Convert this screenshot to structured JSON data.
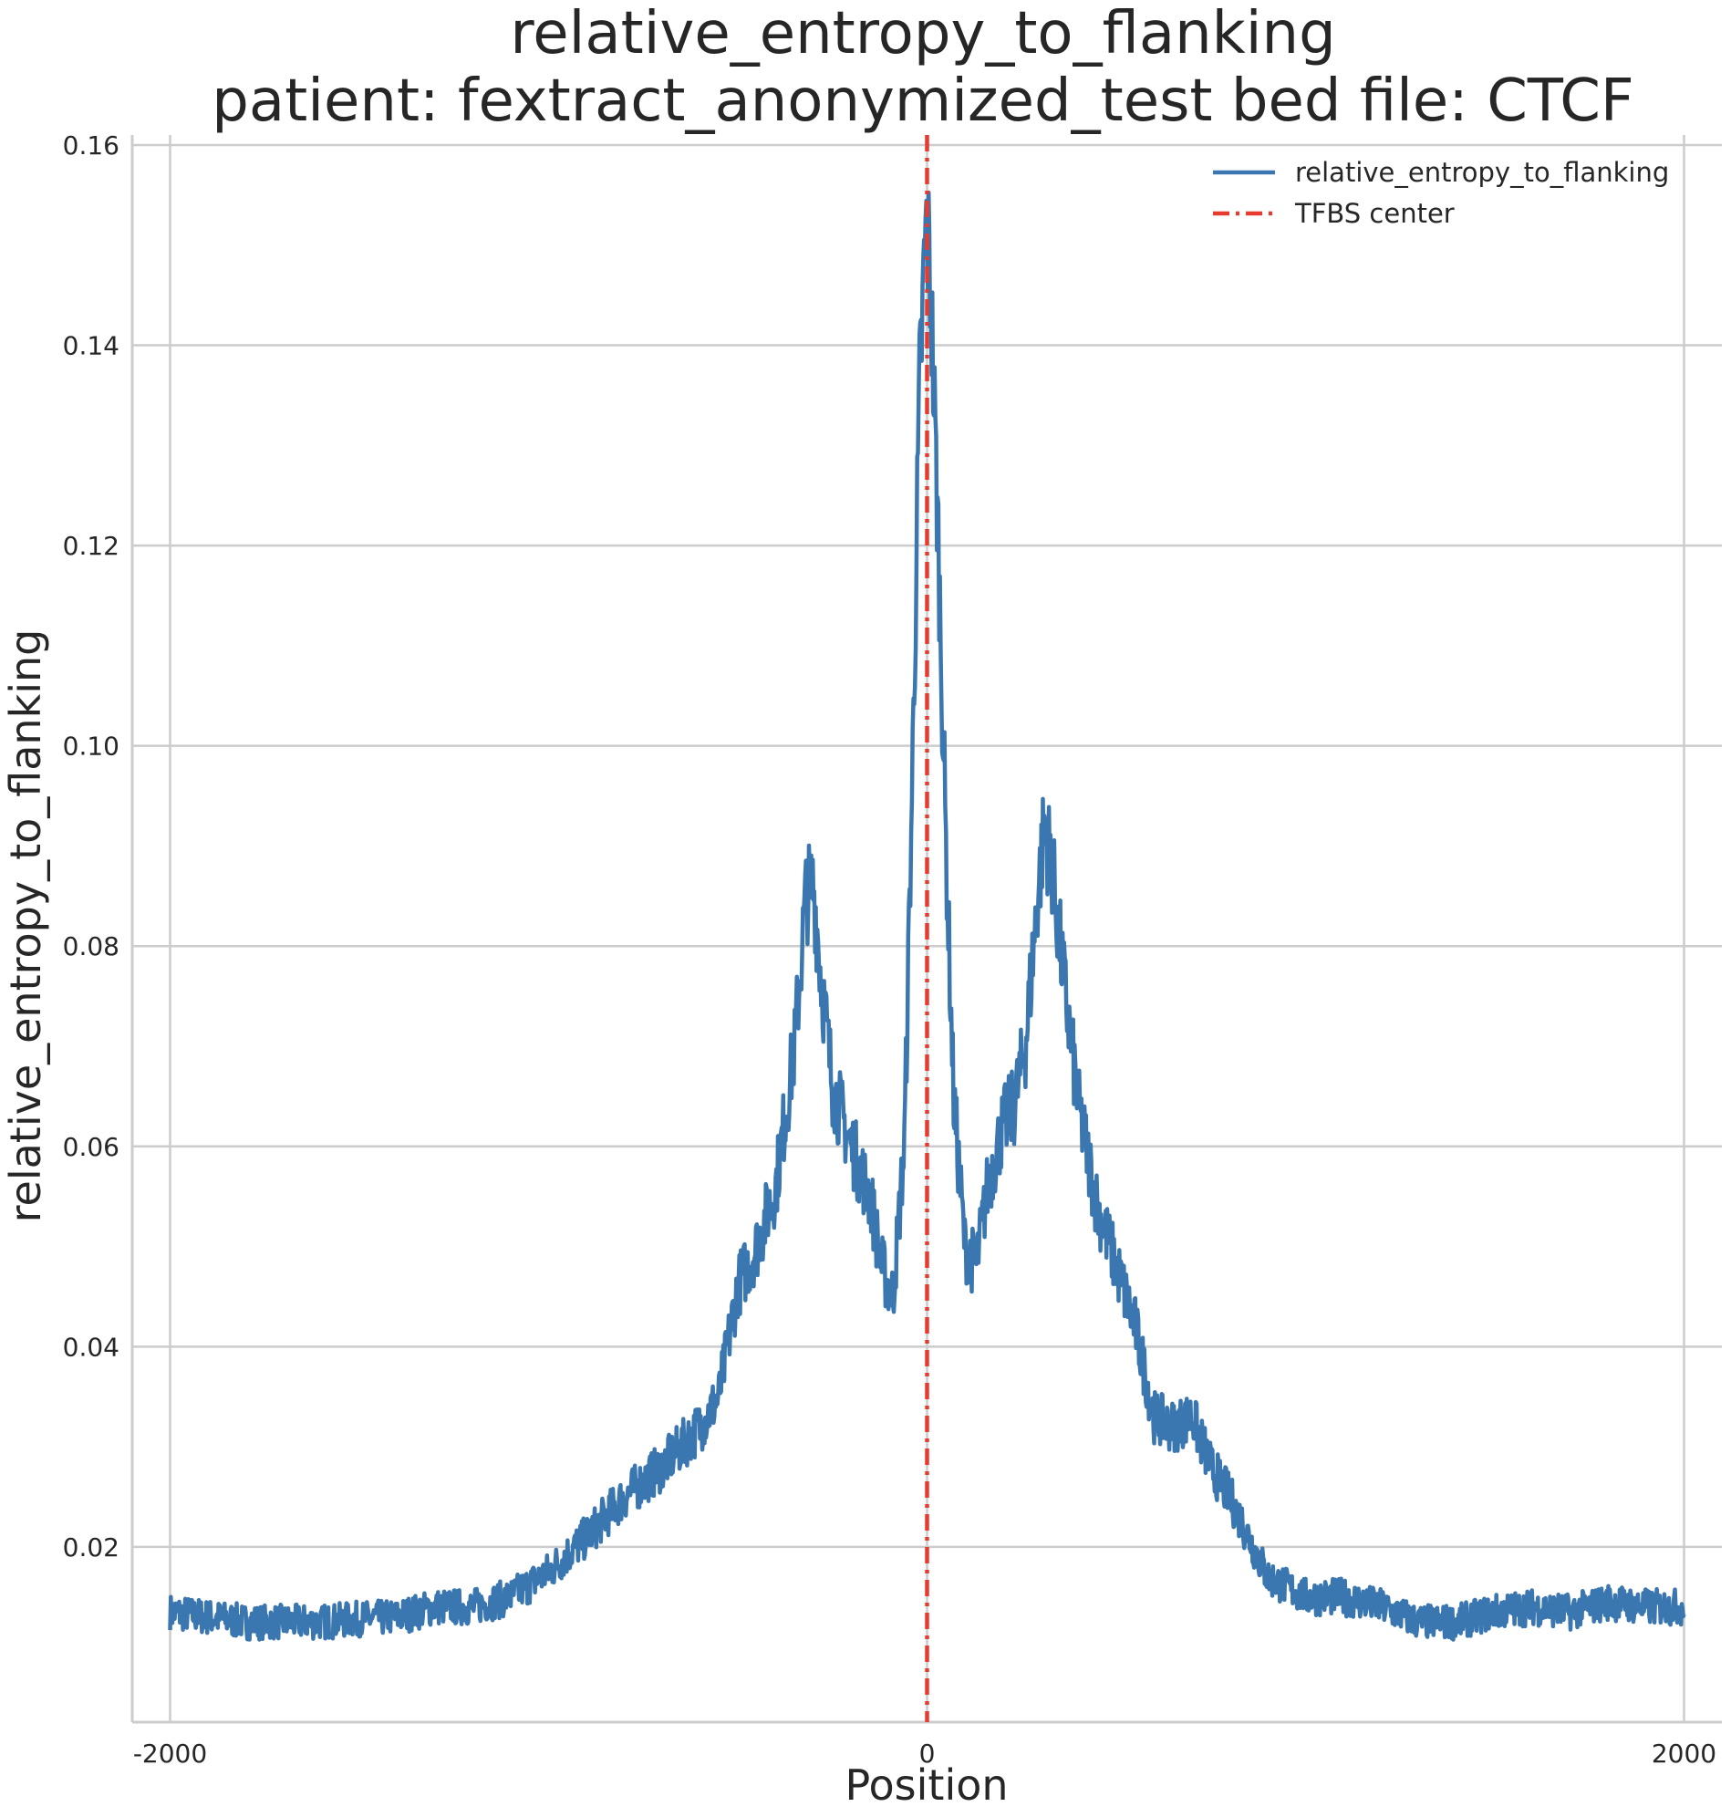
{
  "chart_data": {
    "type": "line",
    "title": "relative_entropy_to_flanking",
    "subtitle": "patient: fextract_anonymized_test bed file: CTCF",
    "xlabel": "Position",
    "ylabel": "relative_entropy_to_flanking",
    "xlim": [
      -2100,
      2100
    ],
    "ylim": [
      0.0025,
      0.161
    ],
    "xticks": [
      -2000,
      0,
      2000
    ],
    "xtick_labels": [
      "-2000",
      "0",
      "2000"
    ],
    "yticks": [
      0.02,
      0.04,
      0.06,
      0.08,
      0.1,
      0.12,
      0.14,
      0.16
    ],
    "ytick_labels": [
      "0.02",
      "0.04",
      "0.06",
      "0.08",
      "0.10",
      "0.12",
      "0.14",
      "0.16"
    ],
    "grid": true,
    "legend_position": "top-right",
    "series": [
      {
        "name": "relative_entropy_to_flanking",
        "color": "#3a76af",
        "style": "solid",
        "points": [
          [
            -2000,
            0.0135
          ],
          [
            -1900,
            0.013
          ],
          [
            -1800,
            0.0125
          ],
          [
            -1700,
            0.0125
          ],
          [
            -1600,
            0.0125
          ],
          [
            -1500,
            0.0128
          ],
          [
            -1400,
            0.013
          ],
          [
            -1300,
            0.014
          ],
          [
            -1200,
            0.014
          ],
          [
            -1100,
            0.015
          ],
          [
            -1000,
            0.0175
          ],
          [
            -900,
            0.021
          ],
          [
            -800,
            0.025
          ],
          [
            -700,
            0.028
          ],
          [
            -600,
            0.032
          ],
          [
            -550,
            0.035
          ],
          [
            -500,
            0.046
          ],
          [
            -450,
            0.05
          ],
          [
            -400,
            0.056
          ],
          [
            -350,
            0.07
          ],
          [
            -320,
            0.085
          ],
          [
            -300,
            0.086
          ],
          [
            -280,
            0.077
          ],
          [
            -250,
            0.066
          ],
          [
            -200,
            0.06
          ],
          [
            -150,
            0.055
          ],
          [
            -120,
            0.048
          ],
          [
            -90,
            0.045
          ],
          [
            -60,
            0.06
          ],
          [
            -40,
            0.095
          ],
          [
            -20,
            0.135
          ],
          [
            -5,
            0.15
          ],
          [
            0,
            0.152
          ],
          [
            10,
            0.145
          ],
          [
            30,
            0.12
          ],
          [
            50,
            0.09
          ],
          [
            70,
            0.065
          ],
          [
            100,
            0.05
          ],
          [
            130,
            0.048
          ],
          [
            160,
            0.056
          ],
          [
            200,
            0.062
          ],
          [
            230,
            0.064
          ],
          [
            260,
            0.07
          ],
          [
            290,
            0.084
          ],
          [
            310,
            0.092
          ],
          [
            330,
            0.088
          ],
          [
            360,
            0.077
          ],
          [
            400,
            0.064
          ],
          [
            450,
            0.054
          ],
          [
            500,
            0.048
          ],
          [
            550,
            0.042
          ],
          [
            600,
            0.033
          ],
          [
            650,
            0.032
          ],
          [
            700,
            0.033
          ],
          [
            750,
            0.028
          ],
          [
            800,
            0.025
          ],
          [
            850,
            0.021
          ],
          [
            900,
            0.017
          ],
          [
            1000,
            0.015
          ],
          [
            1100,
            0.015
          ],
          [
            1200,
            0.014
          ],
          [
            1300,
            0.0125
          ],
          [
            1400,
            0.0125
          ],
          [
            1500,
            0.0135
          ],
          [
            1600,
            0.014
          ],
          [
            1700,
            0.0135
          ],
          [
            1800,
            0.0145
          ],
          [
            1900,
            0.014
          ],
          [
            2000,
            0.014
          ]
        ]
      },
      {
        "name": "TFBS center",
        "color": "#e63b2e",
        "style": "dashdot",
        "vline_x": 0
      }
    ]
  }
}
